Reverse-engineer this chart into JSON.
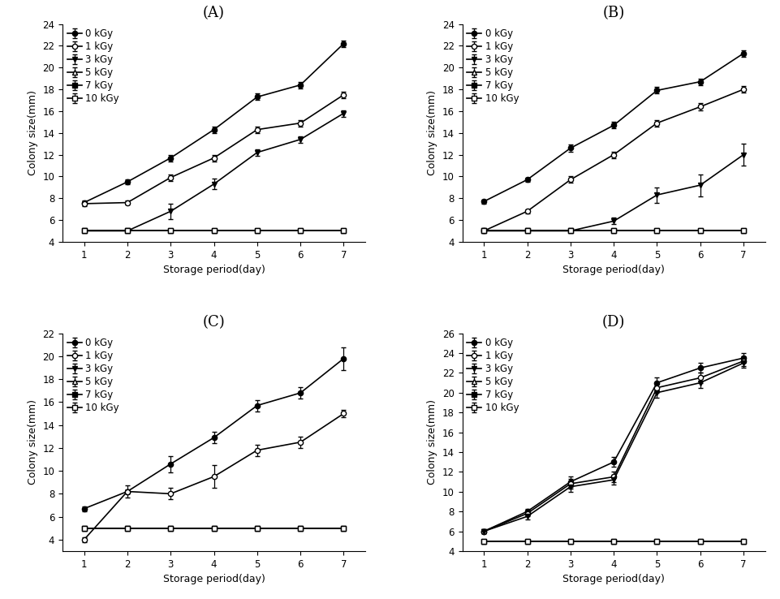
{
  "panels": {
    "A": {
      "title": "(A)",
      "ylabel": "Colony size(mm)",
      "xlabel": "Storage period(day)",
      "ylim": [
        4,
        24
      ],
      "yticks": [
        4,
        6,
        8,
        10,
        12,
        14,
        16,
        18,
        20,
        22,
        24
      ],
      "series": {
        "0 kGy": {
          "y": [
            7.6,
            9.5,
            11.7,
            14.3,
            17.3,
            18.4,
            22.2
          ],
          "yerr": [
            0.2,
            0.2,
            0.3,
            0.3,
            0.3,
            0.3,
            0.3
          ],
          "marker": "o",
          "filled": true
        },
        "1 kGy": {
          "y": [
            7.5,
            7.6,
            9.9,
            11.7,
            14.3,
            14.9,
            17.5
          ],
          "yerr": [
            0.2,
            0.2,
            0.3,
            0.3,
            0.3,
            0.3,
            0.3
          ],
          "marker": "o",
          "filled": false
        },
        "3 kGy": {
          "y": [
            5.0,
            5.0,
            6.8,
            9.3,
            12.2,
            13.4,
            15.8
          ],
          "yerr": [
            0.1,
            0.1,
            0.7,
            0.5,
            0.3,
            0.3,
            0.3
          ],
          "marker": "v",
          "filled": true
        },
        "5 kGy": {
          "y": [
            5.0,
            5.0,
            5.0,
            5.0,
            5.0,
            5.0,
            5.0
          ],
          "yerr": [
            0.1,
            0.1,
            0.1,
            0.1,
            0.1,
            0.1,
            0.1
          ],
          "marker": "^",
          "filled": false
        },
        "7 kGy": {
          "y": [
            5.0,
            5.0,
            5.0,
            5.0,
            5.0,
            5.0,
            5.0
          ],
          "yerr": [
            0.1,
            0.1,
            0.1,
            0.1,
            0.1,
            0.1,
            0.1
          ],
          "marker": "s",
          "filled": true
        },
        "10 kGy": {
          "y": [
            5.0,
            5.0,
            5.0,
            5.0,
            5.0,
            5.0,
            5.0
          ],
          "yerr": [
            0.1,
            0.1,
            0.1,
            0.1,
            0.1,
            0.1,
            0.1
          ],
          "marker": "s",
          "filled": false
        }
      }
    },
    "B": {
      "title": "(B)",
      "ylabel": "Colony size(mm)",
      "xlabel": "Storage period(day)",
      "ylim": [
        4,
        24
      ],
      "yticks": [
        4,
        6,
        8,
        10,
        12,
        14,
        16,
        18,
        20,
        22,
        24
      ],
      "series": {
        "0 kGy": {
          "y": [
            7.7,
            9.7,
            12.6,
            14.7,
            17.9,
            18.7,
            21.3
          ],
          "yerr": [
            0.2,
            0.2,
            0.3,
            0.3,
            0.3,
            0.3,
            0.3
          ],
          "marker": "o",
          "filled": true
        },
        "1 kGy": {
          "y": [
            5.0,
            6.8,
            9.7,
            12.0,
            14.9,
            16.4,
            18.0
          ],
          "yerr": [
            0.1,
            0.2,
            0.3,
            0.3,
            0.3,
            0.3,
            0.3
          ],
          "marker": "o",
          "filled": false
        },
        "3 kGy": {
          "y": [
            5.0,
            5.0,
            5.0,
            5.9,
            8.3,
            9.2,
            12.0
          ],
          "yerr": [
            0.1,
            0.1,
            0.1,
            0.3,
            0.7,
            1.0,
            1.0
          ],
          "marker": "v",
          "filled": true
        },
        "5 kGy": {
          "y": [
            5.0,
            5.0,
            5.0,
            5.0,
            5.0,
            5.0,
            5.0
          ],
          "yerr": [
            0.1,
            0.1,
            0.1,
            0.1,
            0.1,
            0.1,
            0.1
          ],
          "marker": "^",
          "filled": false
        },
        "7 kGy": {
          "y": [
            5.0,
            5.0,
            5.0,
            5.0,
            5.0,
            5.0,
            5.0
          ],
          "yerr": [
            0.1,
            0.1,
            0.1,
            0.1,
            0.1,
            0.1,
            0.1
          ],
          "marker": "s",
          "filled": true
        },
        "10 kGy": {
          "y": [
            5.0,
            5.0,
            5.0,
            5.0,
            5.0,
            5.0,
            5.0
          ],
          "yerr": [
            0.1,
            0.1,
            0.1,
            0.1,
            0.1,
            0.1,
            0.1
          ],
          "marker": "s",
          "filled": false
        }
      }
    },
    "C": {
      "title": "(C)",
      "ylabel": "Colony size(mm)",
      "xlabel": "Storage period(day)",
      "ylim": [
        3,
        22
      ],
      "yticks": [
        4,
        6,
        8,
        10,
        12,
        14,
        16,
        18,
        20,
        22
      ],
      "series": {
        "0 kGy": {
          "y": [
            6.7,
            8.2,
            10.6,
            12.9,
            15.7,
            16.8,
            19.8
          ],
          "yerr": [
            0.2,
            0.2,
            0.7,
            0.5,
            0.5,
            0.5,
            1.0
          ],
          "marker": "o",
          "filled": true
        },
        "1 kGy": {
          "y": [
            4.0,
            8.2,
            8.0,
            9.5,
            11.8,
            12.5,
            15.0
          ],
          "yerr": [
            0.2,
            0.5,
            0.5,
            1.0,
            0.5,
            0.5,
            0.3
          ],
          "marker": "o",
          "filled": false
        },
        "3 kGy": {
          "y": [
            5.0,
            5.0,
            5.0,
            5.0,
            5.0,
            5.0,
            5.0
          ],
          "yerr": [
            0.1,
            0.1,
            0.1,
            0.1,
            0.1,
            0.1,
            0.1
          ],
          "marker": "v",
          "filled": true
        },
        "5 kGy": {
          "y": [
            5.0,
            5.0,
            5.0,
            5.0,
            5.0,
            5.0,
            5.0
          ],
          "yerr": [
            0.1,
            0.1,
            0.1,
            0.1,
            0.1,
            0.1,
            0.1
          ],
          "marker": "^",
          "filled": false
        },
        "7 kGy": {
          "y": [
            5.0,
            5.0,
            5.0,
            5.0,
            5.0,
            5.0,
            5.0
          ],
          "yerr": [
            0.1,
            0.1,
            0.1,
            0.1,
            0.1,
            0.1,
            0.1
          ],
          "marker": "s",
          "filled": true
        },
        "10 kGy": {
          "y": [
            5.0,
            5.0,
            5.0,
            5.0,
            5.0,
            5.0,
            5.0
          ],
          "yerr": [
            0.1,
            0.1,
            0.1,
            0.1,
            0.1,
            0.1,
            0.1
          ],
          "marker": "s",
          "filled": false
        }
      }
    },
    "D": {
      "title": "(D)",
      "ylabel": "Colony size(mm)",
      "xlabel": "Storage period(day)",
      "ylim": [
        4,
        26
      ],
      "yticks": [
        4,
        6,
        8,
        10,
        12,
        14,
        16,
        18,
        20,
        22,
        24,
        26
      ],
      "series": {
        "0 kGy": {
          "y": [
            6.0,
            8.0,
            11.0,
            13.0,
            21.0,
            22.5,
            23.5
          ],
          "yerr": [
            0.2,
            0.3,
            0.5,
            0.5,
            0.5,
            0.5,
            0.5
          ],
          "marker": "o",
          "filled": true
        },
        "1 kGy": {
          "y": [
            6.0,
            7.8,
            10.8,
            11.5,
            20.5,
            21.5,
            23.2
          ],
          "yerr": [
            0.2,
            0.3,
            0.5,
            0.5,
            0.5,
            0.5,
            0.5
          ],
          "marker": "o",
          "filled": false
        },
        "3 kGy": {
          "y": [
            6.0,
            7.5,
            10.5,
            11.2,
            20.0,
            21.0,
            23.0
          ],
          "yerr": [
            0.2,
            0.3,
            0.5,
            0.5,
            0.5,
            0.5,
            0.5
          ],
          "marker": "v",
          "filled": true
        },
        "5 kGy": {
          "y": [
            5.0,
            5.0,
            5.0,
            5.0,
            5.0,
            5.0,
            5.0
          ],
          "yerr": [
            0.1,
            0.1,
            0.1,
            0.1,
            0.1,
            0.1,
            0.1
          ],
          "marker": "^",
          "filled": false
        },
        "7 kGy": {
          "y": [
            5.0,
            5.0,
            5.0,
            5.0,
            5.0,
            5.0,
            5.0
          ],
          "yerr": [
            0.1,
            0.1,
            0.1,
            0.1,
            0.1,
            0.1,
            0.1
          ],
          "marker": "s",
          "filled": true
        },
        "10 kGy": {
          "y": [
            5.0,
            5.0,
            5.0,
            5.0,
            5.0,
            5.0,
            5.0
          ],
          "yerr": [
            0.1,
            0.1,
            0.1,
            0.1,
            0.1,
            0.1,
            0.1
          ],
          "marker": "s",
          "filled": false
        }
      }
    }
  },
  "x": [
    1,
    2,
    3,
    4,
    5,
    6,
    7
  ],
  "legend_labels": [
    "0 kGy",
    "1 kGy",
    "3 kGy",
    "5 kGy",
    "7 kGy",
    "10 kGy"
  ],
  "linewidth": 1.2,
  "markersize": 4.5,
  "capsize": 2.5,
  "elinewidth": 0.9,
  "title_fontsize": 13,
  "label_fontsize": 9,
  "tick_fontsize": 8.5,
  "legend_fontsize": 8.5
}
